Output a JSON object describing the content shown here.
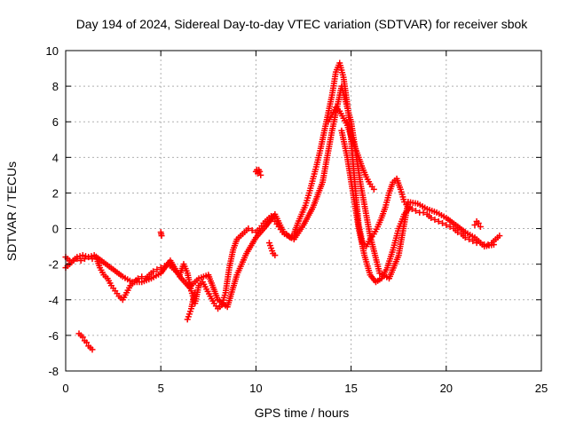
{
  "chart_data": {
    "type": "scatter",
    "title": "Day 194 of 2024, Sidereal Day-to-day VTEC variation (SDTVAR) for receiver sbok",
    "xlabel": "GPS time / hours",
    "ylabel": "SDTVAR / TECUs",
    "xlim": [
      0,
      25
    ],
    "ylim": [
      -8,
      10
    ],
    "xticks": [
      0,
      5,
      10,
      15,
      20,
      25
    ],
    "yticks": [
      -8,
      -6,
      -4,
      -2,
      0,
      2,
      4,
      6,
      8,
      10
    ],
    "grid": true,
    "marker": "+",
    "marker_color": "#ff0000",
    "series": [
      {
        "name": "main",
        "x": [
          0.0,
          0.2,
          0.4,
          0.6,
          0.8,
          1.0,
          1.2,
          1.4,
          1.6,
          1.8,
          2.0,
          2.2,
          2.4,
          2.6,
          2.8,
          3.0,
          3.2,
          3.4,
          3.6,
          3.8,
          4.0,
          4.2,
          4.4,
          4.6,
          4.8,
          5.0,
          5.2,
          5.4,
          5.6,
          5.8,
          6.0,
          6.2,
          6.4,
          6.6,
          6.8,
          7.0,
          7.2,
          7.4,
          7.6,
          7.8,
          8.0,
          8.2,
          8.4,
          8.6,
          8.8,
          9.0,
          9.2,
          9.4,
          9.6,
          9.8,
          10.0,
          10.2,
          10.4,
          10.6,
          10.8,
          11.0,
          11.2,
          11.4,
          11.6,
          11.8,
          12.0,
          12.2,
          12.4,
          12.6,
          12.8,
          13.0,
          13.2,
          13.4,
          13.6,
          13.8,
          14.0,
          14.2,
          14.4,
          14.6,
          14.8,
          15.0,
          15.2,
          15.4,
          15.6,
          15.8,
          16.0,
          16.2,
          16.4,
          16.6,
          16.8,
          17.0,
          17.2,
          17.4,
          17.6,
          17.8,
          18.0,
          18.2,
          18.4,
          18.6,
          18.8,
          19.0,
          19.2,
          19.4,
          19.6,
          19.8,
          20.0,
          20.2,
          20.4,
          20.6,
          20.8,
          21.0,
          21.2,
          21.4,
          21.6,
          21.8,
          22.0,
          22.2,
          22.4,
          22.6,
          22.8
        ],
        "y": [
          -2.2,
          -2.0,
          -1.8,
          -1.7,
          -1.8,
          -1.7,
          -1.6,
          -1.7,
          -1.6,
          -2.2,
          -2.6,
          -2.8,
          -3.2,
          -3.5,
          -3.8,
          -4.0,
          -3.6,
          -3.2,
          -3.0,
          -2.8,
          -2.7,
          -2.8,
          -2.6,
          -2.4,
          -2.3,
          -2.2,
          -2.1,
          -2.0,
          -2.2,
          -2.4,
          -2.6,
          -2.0,
          -2.5,
          -3.5,
          -4.2,
          -3.2,
          -3.0,
          -3.4,
          -3.8,
          -4.2,
          -4.5,
          -4.3,
          -3.6,
          -2.2,
          -1.2,
          -0.6,
          -0.4,
          -0.2,
          0.0,
          -0.1,
          -0.2,
          0.0,
          0.3,
          0.5,
          0.7,
          0.4,
          0.1,
          -0.2,
          -0.3,
          -0.5,
          -0.3,
          0.3,
          0.8,
          1.3,
          2.0,
          2.8,
          3.6,
          4.5,
          5.5,
          6.5,
          7.5,
          8.8,
          9.3,
          8.5,
          7.0,
          5.0,
          2.5,
          0.2,
          -0.8,
          -1.0,
          -0.6,
          -0.3,
          0.1,
          0.6,
          1.2,
          2.0,
          2.6,
          2.8,
          2.2,
          1.5,
          1.2,
          1.1,
          1.0,
          0.9,
          0.9,
          0.8,
          0.6,
          0.5,
          0.4,
          0.3,
          0.2,
          0.1,
          0.0,
          -0.2,
          -0.3,
          -0.5,
          -0.6,
          -0.7,
          -0.8,
          -0.8,
          -0.9,
          -0.9,
          -0.8,
          -0.6,
          -0.4
        ]
      },
      {
        "name": "secondary",
        "x": [
          0.0,
          0.3,
          0.6,
          0.9,
          1.2,
          1.5,
          2.5,
          3.0,
          3.5,
          4.0,
          4.5,
          5.0,
          5.5,
          6.0,
          6.5,
          7.0,
          7.5,
          8.0,
          8.5,
          9.0,
          9.5,
          10.0,
          10.5,
          11.0,
          11.5,
          12.0,
          12.5,
          13.0,
          13.5,
          14.0,
          14.5,
          15.0,
          15.5,
          16.0,
          16.5,
          17.0,
          17.5,
          18.0,
          18.5,
          19.0,
          19.5,
          20.0,
          20.5,
          21.0,
          21.5,
          22.0,
          22.5
        ],
        "y": [
          -1.6,
          -1.9,
          -1.6,
          -1.5,
          -1.6,
          -1.5,
          -2.3,
          -2.7,
          -3.0,
          -3.0,
          -2.8,
          -2.5,
          -1.8,
          -2.7,
          -3.3,
          -2.8,
          -2.6,
          -4.0,
          -4.4,
          -2.6,
          -1.4,
          -0.5,
          0.1,
          0.8,
          -0.3,
          -0.6,
          0.2,
          1.2,
          2.6,
          5.5,
          8.0,
          6.0,
          2.5,
          -0.4,
          -2.5,
          -2.8,
          -1.5,
          1.5,
          1.4,
          1.1,
          0.9,
          0.6,
          0.2,
          -0.2,
          -0.5,
          -1.0,
          -0.9
        ]
      },
      {
        "name": "upper-branch",
        "x": [
          13.8,
          14.0,
          14.2,
          14.4,
          14.6,
          14.8,
          15.0,
          15.2,
          15.4,
          15.6,
          15.8,
          16.0,
          16.2
        ],
        "y": [
          6.0,
          6.4,
          6.8,
          6.6,
          6.2,
          5.8,
          5.2,
          4.6,
          4.0,
          3.4,
          2.9,
          2.5,
          2.2
        ]
      },
      {
        "name": "lower-branch",
        "x": [
          14.5,
          14.8,
          15.1,
          15.4,
          15.7,
          16.0,
          16.3,
          16.6,
          16.9,
          17.2,
          17.5,
          17.8,
          18.1
        ],
        "y": [
          5.5,
          4.0,
          2.0,
          0.0,
          -1.5,
          -2.6,
          -3.0,
          -2.8,
          -2.2,
          -1.2,
          0.0,
          0.8,
          1.2
        ]
      },
      {
        "name": "segment-early",
        "x": [
          0.7,
          0.8,
          0.9,
          1.0,
          1.1,
          1.2,
          1.3,
          1.4
        ],
        "y": [
          -5.9,
          -6.0,
          -6.1,
          -6.3,
          -6.4,
          -6.6,
          -6.7,
          -6.8
        ]
      },
      {
        "name": "spike-5",
        "x": [
          5.0,
          5.02,
          5.04
        ],
        "y": [
          -0.2,
          -0.3,
          -0.4
        ]
      },
      {
        "name": "drop-6_5",
        "x": [
          6.4,
          6.5,
          6.6,
          6.7,
          6.8
        ],
        "y": [
          -5.1,
          -4.8,
          -4.5,
          -4.0,
          -3.6
        ]
      },
      {
        "name": "jump-10",
        "x": [
          10.0,
          10.05,
          10.1,
          10.15,
          10.2,
          10.25
        ],
        "y": [
          3.2,
          3.3,
          3.1,
          3.3,
          3.2,
          3.0
        ]
      },
      {
        "name": "dip-10_8",
        "x": [
          10.7,
          10.8,
          10.9,
          11.0
        ],
        "y": [
          -0.8,
          -1.1,
          -1.4,
          -1.5
        ]
      },
      {
        "name": "tail-21_6",
        "x": [
          21.5,
          21.6,
          21.7,
          21.8
        ],
        "y": [
          0.2,
          0.4,
          0.3,
          0.1
        ]
      }
    ]
  }
}
